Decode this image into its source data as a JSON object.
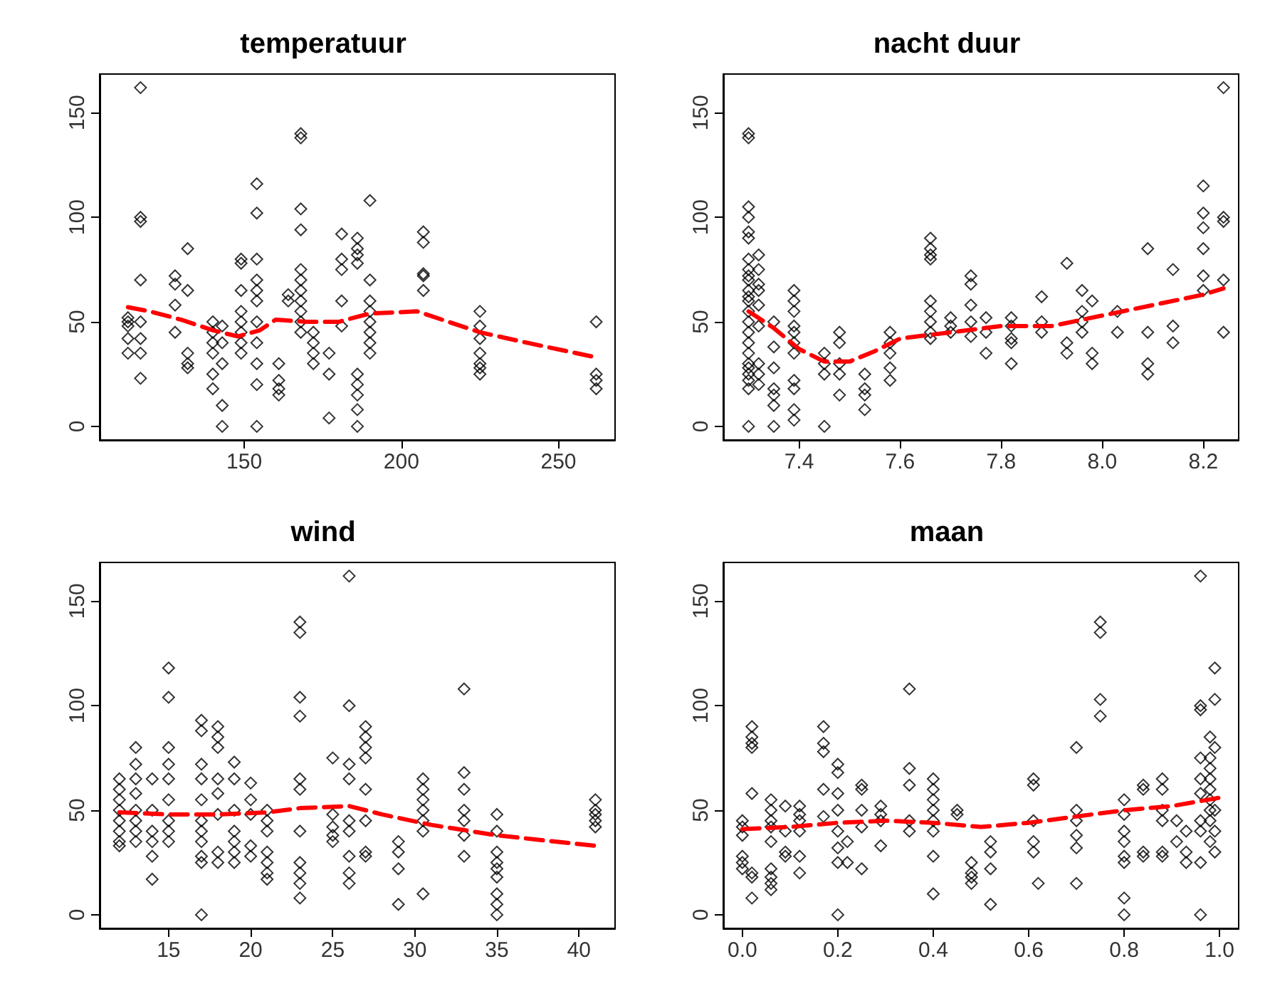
{
  "chart_data": [
    {
      "type": "scatter",
      "title": "temperatuur",
      "xlim": [
        104,
        268
      ],
      "xticks": [
        150,
        200,
        250
      ],
      "ylim": [
        -6.5,
        168.5
      ],
      "yticks": [
        0,
        50,
        100,
        150
      ],
      "grid": false,
      "series": [
        {
          "type": "scatter",
          "color": "#000000",
          "marker": "diamond",
          "x": [
            113,
            113,
            113,
            113,
            113,
            117,
            117,
            117,
            117,
            117,
            117,
            117,
            117,
            128,
            128,
            128,
            128,
            132,
            132,
            132,
            132,
            132,
            140,
            140,
            140,
            140,
            140,
            140,
            143,
            143,
            143,
            143,
            143,
            149,
            149,
            149,
            149,
            149,
            149,
            149,
            149,
            154,
            154,
            154,
            154,
            154,
            154,
            154,
            154,
            154,
            154,
            154,
            161,
            161,
            161,
            161,
            164,
            164,
            168,
            168,
            168,
            168,
            168,
            168,
            168,
            168,
            168,
            168,
            168,
            172,
            172,
            172,
            172,
            177,
            177,
            177,
            181,
            181,
            181,
            181,
            181,
            186,
            186,
            186,
            186,
            186,
            186,
            186,
            186,
            186,
            190,
            190,
            190,
            190,
            190,
            190,
            190,
            190,
            207,
            207,
            207,
            207,
            207,
            225,
            225,
            225,
            225,
            225,
            225,
            225,
            262,
            262,
            262,
            262
          ],
          "values": [
            35,
            42,
            48,
            50,
            52,
            23,
            35,
            42,
            50,
            70,
            98,
            100,
            162,
            72,
            68,
            58,
            45,
            85,
            65,
            35,
            30,
            28,
            50,
            45,
            40,
            35,
            25,
            18,
            10,
            0,
            30,
            40,
            48,
            80,
            78,
            65,
            55,
            50,
            45,
            40,
            35,
            116,
            102,
            80,
            70,
            65,
            60,
            50,
            40,
            30,
            20,
            0,
            30,
            22,
            18,
            15,
            63,
            60,
            140,
            138,
            104,
            94,
            75,
            70,
            65,
            60,
            55,
            50,
            45,
            45,
            40,
            35,
            30,
            35,
            25,
            4,
            92,
            80,
            75,
            60,
            48,
            90,
            85,
            82,
            78,
            25,
            20,
            15,
            8,
            0,
            108,
            70,
            60,
            55,
            50,
            45,
            40,
            35,
            93,
            88,
            73,
            72,
            65,
            55,
            48,
            42,
            35,
            30,
            28,
            25,
            50,
            25,
            22,
            18
          ]
        },
        {
          "type": "line",
          "color": "#ff0000",
          "line_style": "dashed",
          "marker": "none",
          "x": [
            113,
            120,
            130,
            140,
            148,
            155,
            160,
            170,
            180,
            190,
            205,
            215,
            225,
            240,
            262
          ],
          "values": [
            57,
            55,
            51,
            46,
            43,
            46,
            51,
            50,
            50,
            54,
            55,
            50,
            45,
            40,
            33
          ]
        }
      ]
    },
    {
      "type": "scatter",
      "title": "nacht duur",
      "xlim": [
        7.25,
        8.27
      ],
      "xticks": [
        7.4,
        7.6,
        7.8,
        {
          "value": 8,
          "label": "8.0"
        },
        8.2
      ],
      "ylim": [
        -6.5,
        168.5
      ],
      "yticks": [
        0,
        50,
        100,
        150
      ],
      "grid": false,
      "series": [
        {
          "type": "scatter",
          "color": "#000000",
          "marker": "diamond",
          "x": [
            7.3,
            7.3,
            7.3,
            7.3,
            7.3,
            7.3,
            7.3,
            7.3,
            7.3,
            7.3,
            7.3,
            7.3,
            7.3,
            7.3,
            7.3,
            7.3,
            7.3,
            7.3,
            7.3,
            7.3,
            7.3,
            7.3,
            7.3,
            7.3,
            7.32,
            7.32,
            7.32,
            7.32,
            7.32,
            7.32,
            7.32,
            7.32,
            7.32,
            7.35,
            7.35,
            7.35,
            7.35,
            7.35,
            7.35,
            7.35,
            7.39,
            7.39,
            7.39,
            7.39,
            7.39,
            7.39,
            7.39,
            7.39,
            7.39,
            7.39,
            7.39,
            7.45,
            7.45,
            7.45,
            7.45,
            7.48,
            7.48,
            7.48,
            7.48,
            7.48,
            7.53,
            7.53,
            7.53,
            7.53,
            7.58,
            7.58,
            7.58,
            7.58,
            7.58,
            7.66,
            7.66,
            7.66,
            7.66,
            7.66,
            7.66,
            7.66,
            7.66,
            7.66,
            7.7,
            7.7,
            7.7,
            7.74,
            7.74,
            7.74,
            7.74,
            7.74,
            7.77,
            7.77,
            7.77,
            7.82,
            7.82,
            7.82,
            7.82,
            7.82,
            7.88,
            7.88,
            7.88,
            7.93,
            7.93,
            7.93,
            7.96,
            7.96,
            7.96,
            7.96,
            7.98,
            7.98,
            7.98,
            8.03,
            8.03,
            8.09,
            8.09,
            8.09,
            8.09,
            8.14,
            8.14,
            8.14,
            8.2,
            8.2,
            8.2,
            8.2,
            8.2,
            8.2,
            8.24,
            8.24,
            8.24,
            8.24,
            8.24
          ],
          "values": [
            0,
            18,
            22,
            25,
            28,
            30,
            35,
            40,
            45,
            50,
            55,
            60,
            62,
            65,
            70,
            72,
            75,
            80,
            90,
            93,
            100,
            105,
            138,
            140,
            20,
            25,
            30,
            48,
            58,
            65,
            68,
            75,
            82,
            0,
            10,
            15,
            18,
            28,
            38,
            50,
            65,
            60,
            55,
            48,
            45,
            40,
            35,
            22,
            18,
            8,
            3,
            0,
            25,
            30,
            35,
            45,
            40,
            30,
            25,
            15,
            25,
            18,
            15,
            8,
            45,
            40,
            35,
            28,
            22,
            90,
            85,
            82,
            80,
            60,
            55,
            50,
            45,
            42,
            52,
            48,
            45,
            72,
            68,
            58,
            50,
            43,
            52,
            45,
            35,
            52,
            48,
            42,
            40,
            30,
            62,
            50,
            45,
            78,
            40,
            35,
            65,
            55,
            50,
            45,
            60,
            35,
            30,
            55,
            45,
            85,
            45,
            30,
            25,
            75,
            48,
            40,
            115,
            102,
            95,
            85,
            72,
            65,
            162,
            100,
            98,
            70,
            45
          ]
        },
        {
          "type": "line",
          "color": "#ff0000",
          "line_style": "dashed",
          "marker": "none",
          "x": [
            7.3,
            7.35,
            7.4,
            7.45,
            7.5,
            7.55,
            7.6,
            7.7,
            7.8,
            7.9,
            8.0,
            8.1,
            8.2,
            8.24
          ],
          "values": [
            55,
            47,
            37,
            31,
            31,
            36,
            42,
            45,
            48,
            48,
            53,
            58,
            63,
            66
          ]
        }
      ]
    },
    {
      "type": "scatter",
      "title": "wind",
      "xlim": [
        10.8,
        42.2
      ],
      "xticks": [
        15,
        20,
        25,
        30,
        35,
        40
      ],
      "ylim": [
        -6.5,
        168.5
      ],
      "yticks": [
        0,
        50,
        100,
        150
      ],
      "grid": false,
      "series": [
        {
          "type": "scatter",
          "color": "#000000",
          "marker": "diamond",
          "x": [
            12,
            12,
            12,
            12,
            12,
            12,
            12,
            12,
            13,
            13,
            13,
            13,
            13,
            13,
            13,
            13,
            14,
            14,
            14,
            14,
            14,
            14,
            15,
            15,
            15,
            15,
            15,
            15,
            15,
            15,
            15,
            17,
            17,
            17,
            17,
            17,
            17,
            17,
            17,
            17,
            17,
            17,
            18,
            18,
            18,
            18,
            18,
            18,
            18,
            18,
            19,
            19,
            19,
            19,
            19,
            19,
            19,
            20,
            20,
            20,
            20,
            20,
            21,
            21,
            21,
            21,
            21,
            21,
            21,
            23,
            23,
            23,
            23,
            23,
            23,
            23,
            23,
            23,
            23,
            23,
            25,
            25,
            25,
            25,
            25,
            26,
            26,
            26,
            26,
            26,
            26,
            26,
            26,
            26,
            27,
            27,
            27,
            27,
            27,
            27,
            27,
            27,
            29,
            29,
            29,
            29,
            30.5,
            30.5,
            30.5,
            30.5,
            30.5,
            30.5,
            30.5,
            33,
            33,
            33,
            33,
            33,
            33,
            33,
            35,
            35,
            35,
            35,
            35,
            35,
            35,
            35,
            35,
            41,
            41,
            41,
            41,
            41
          ],
          "values": [
            65,
            60,
            55,
            50,
            45,
            40,
            35,
            33,
            80,
            72,
            65,
            58,
            50,
            45,
            40,
            35,
            65,
            50,
            40,
            35,
            28,
            17,
            118,
            104,
            80,
            72,
            65,
            55,
            45,
            40,
            35,
            93,
            88,
            72,
            65,
            55,
            45,
            40,
            35,
            28,
            25,
            0,
            90,
            85,
            80,
            65,
            58,
            48,
            30,
            25,
            73,
            65,
            50,
            40,
            35,
            30,
            25,
            63,
            55,
            48,
            33,
            28,
            50,
            45,
            40,
            30,
            25,
            20,
            17,
            140,
            135,
            104,
            95,
            65,
            60,
            40,
            25,
            20,
            15,
            8,
            75,
            48,
            42,
            38,
            35,
            162,
            100,
            72,
            65,
            45,
            40,
            28,
            20,
            15,
            90,
            85,
            80,
            75,
            60,
            45,
            30,
            28,
            35,
            30,
            22,
            5,
            65,
            60,
            55,
            50,
            45,
            40,
            10,
            108,
            68,
            60,
            50,
            45,
            38,
            28,
            48,
            40,
            30,
            25,
            22,
            18,
            10,
            5,
            0,
            55,
            50,
            48,
            45,
            42
          ]
        },
        {
          "type": "line",
          "color": "#ff0000",
          "line_style": "dashed",
          "marker": "none",
          "x": [
            12,
            15,
            18,
            21,
            23,
            26,
            28,
            31,
            35,
            41
          ],
          "values": [
            49,
            48,
            48,
            49,
            51,
            52,
            48,
            43,
            38,
            33
          ]
        }
      ]
    },
    {
      "type": "scatter",
      "title": "maan",
      "xlim": [
        -0.04,
        1.04
      ],
      "xticks": [
        {
          "value": 0,
          "label": "0.0"
        },
        0.2,
        0.4,
        0.6,
        0.8,
        {
          "value": 1,
          "label": "1.0"
        }
      ],
      "ylim": [
        -6.5,
        168.5
      ],
      "yticks": [
        0,
        50,
        100,
        150
      ],
      "grid": false,
      "series": [
        {
          "type": "scatter",
          "color": "#000000",
          "marker": "diamond",
          "x": [
            0,
            0,
            0,
            0,
            0,
            0,
            0.02,
            0.02,
            0.02,
            0.02,
            0.02,
            0.02,
            0.02,
            0.02,
            0.06,
            0.06,
            0.06,
            0.06,
            0.06,
            0.06,
            0.06,
            0.06,
            0.06,
            0.09,
            0.09,
            0.09,
            0.09,
            0.12,
            0.12,
            0.12,
            0.12,
            0.12,
            0.12,
            0.17,
            0.17,
            0.17,
            0.17,
            0.17,
            0.2,
            0.2,
            0.2,
            0.2,
            0.2,
            0.2,
            0.2,
            0.2,
            0.22,
            0.22,
            0.25,
            0.25,
            0.25,
            0.25,
            0.25,
            0.29,
            0.29,
            0.29,
            0.29,
            0.35,
            0.35,
            0.35,
            0.35,
            0.35,
            0.4,
            0.4,
            0.4,
            0.4,
            0.4,
            0.4,
            0.4,
            0.4,
            0.45,
            0.45,
            0.48,
            0.48,
            0.48,
            0.48,
            0.52,
            0.52,
            0.52,
            0.52,
            0.61,
            0.61,
            0.61,
            0.61,
            0.61,
            0.62,
            0.7,
            0.7,
            0.7,
            0.7,
            0.7,
            0.7,
            0.75,
            0.75,
            0.75,
            0.75,
            0.8,
            0.8,
            0.8,
            0.8,
            0.8,
            0.8,
            0.8,
            0.8,
            0.84,
            0.84,
            0.84,
            0.84,
            0.88,
            0.88,
            0.88,
            0.88,
            0.88,
            0.88,
            0.91,
            0.91,
            0.93,
            0.93,
            0.93,
            0.96,
            0.96,
            0.96,
            0.96,
            0.96,
            0.96,
            0.96,
            0.96,
            0.96,
            0.96,
            0.98,
            0.98,
            0.98,
            0.98,
            0.98,
            0.98,
            0.98,
            0.98,
            0.98,
            0.99,
            0.99,
            0.99,
            0.99,
            0.99,
            0.99
          ],
          "values": [
            45,
            42,
            38,
            28,
            25,
            22,
            90,
            85,
            82,
            80,
            58,
            20,
            18,
            8,
            55,
            50,
            45,
            42,
            35,
            22,
            18,
            15,
            12,
            52,
            40,
            30,
            28,
            52,
            48,
            45,
            40,
            28,
            20,
            90,
            82,
            78,
            60,
            47,
            72,
            68,
            58,
            50,
            40,
            32,
            25,
            0,
            35,
            25,
            62,
            60,
            50,
            42,
            22,
            52,
            48,
            45,
            33,
            108,
            70,
            62,
            45,
            40,
            65,
            60,
            55,
            50,
            45,
            40,
            28,
            10,
            50,
            48,
            25,
            20,
            18,
            15,
            35,
            30,
            22,
            5,
            65,
            62,
            45,
            35,
            30,
            15,
            80,
            50,
            45,
            38,
            32,
            15,
            140,
            135,
            103,
            95,
            55,
            48,
            40,
            35,
            28,
            25,
            8,
            0,
            62,
            60,
            30,
            28,
            65,
            60,
            50,
            45,
            30,
            28,
            45,
            35,
            40,
            30,
            25,
            162,
            100,
            98,
            75,
            65,
            58,
            45,
            40,
            25,
            0,
            85,
            75,
            70,
            65,
            60,
            55,
            50,
            45,
            35,
            118,
            103,
            80,
            50,
            40,
            30
          ]
        },
        {
          "type": "line",
          "color": "#ff0000",
          "line_style": "dashed",
          "marker": "none",
          "x": [
            0,
            0.1,
            0.2,
            0.3,
            0.4,
            0.5,
            0.6,
            0.7,
            0.8,
            0.9,
            1
          ],
          "values": [
            41,
            42,
            44,
            45,
            44,
            42,
            44,
            47,
            50,
            52,
            56
          ]
        }
      ]
    }
  ]
}
